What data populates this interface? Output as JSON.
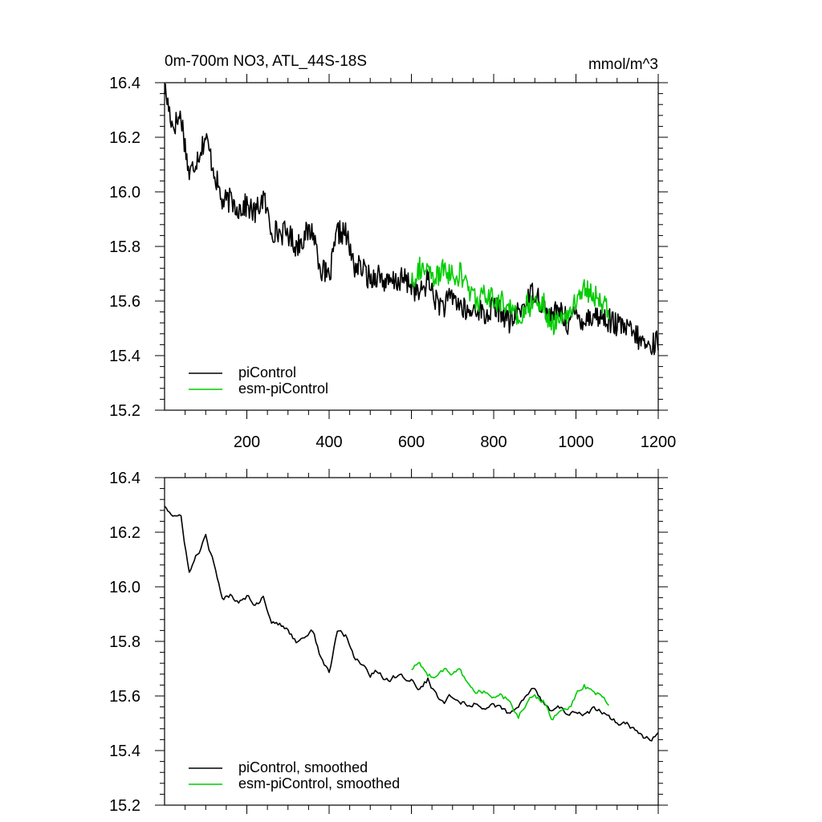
{
  "chart_data": [
    {
      "type": "line",
      "title": "0m-700m NO3, ATL_44S-18S",
      "units": "mmol/m^3",
      "xlabel": "",
      "ylabel": "",
      "xlim": [
        0,
        1200
      ],
      "ylim": [
        15.2,
        16.4
      ],
      "x_ticks": [
        200,
        400,
        600,
        800,
        1000,
        1200
      ],
      "y_ticks": [
        15.2,
        15.4,
        15.6,
        15.8,
        16.0,
        16.2,
        16.4
      ],
      "x_tick_labels": [
        "200",
        "400",
        "600",
        "800",
        "1000",
        "1200"
      ],
      "y_tick_labels": [
        "15.2",
        "15.4",
        "15.6",
        "15.8",
        "16.0",
        "16.2",
        "16.4"
      ],
      "legend_position": "bottom-left",
      "series": [
        {
          "name": "piControl",
          "color": "#000000",
          "x": [
            0,
            20,
            40,
            60,
            80,
            100,
            120,
            140,
            160,
            180,
            200,
            220,
            240,
            260,
            280,
            300,
            320,
            340,
            360,
            380,
            400,
            420,
            440,
            460,
            480,
            500,
            520,
            540,
            560,
            580,
            600,
            620,
            640,
            660,
            680,
            700,
            720,
            740,
            760,
            780,
            800,
            820,
            840,
            860,
            880,
            900,
            920,
            940,
            960,
            980,
            1000,
            1020,
            1040,
            1060,
            1080,
            1100,
            1120,
            1140,
            1160,
            1180,
            1200
          ],
          "values": [
            16.38,
            16.24,
            16.28,
            16.06,
            16.13,
            16.2,
            16.08,
            15.96,
            15.97,
            15.94,
            15.95,
            15.92,
            15.98,
            15.86,
            15.85,
            15.85,
            15.8,
            15.84,
            15.86,
            15.72,
            15.68,
            15.85,
            15.85,
            15.73,
            15.72,
            15.68,
            15.7,
            15.66,
            15.67,
            15.68,
            15.66,
            15.62,
            15.68,
            15.6,
            15.58,
            15.62,
            15.58,
            15.55,
            15.58,
            15.54,
            15.58,
            15.56,
            15.52,
            15.56,
            15.6,
            15.64,
            15.58,
            15.54,
            15.57,
            15.52,
            15.55,
            15.53,
            15.55,
            15.54,
            15.53,
            15.51,
            15.5,
            15.48,
            15.45,
            15.43,
            15.46
          ]
        },
        {
          "name": "esm-piControl",
          "color": "#00cc00",
          "x": [
            600,
            620,
            640,
            660,
            680,
            700,
            720,
            740,
            760,
            780,
            800,
            820,
            840,
            860,
            880,
            900,
            920,
            940,
            960,
            980,
            1000,
            1020,
            1040,
            1060,
            1080
          ],
          "values": [
            15.68,
            15.72,
            15.7,
            15.68,
            15.72,
            15.69,
            15.7,
            15.64,
            15.6,
            15.62,
            15.6,
            15.6,
            15.58,
            15.52,
            15.58,
            15.6,
            15.6,
            15.5,
            15.56,
            15.54,
            15.6,
            15.66,
            15.62,
            15.6,
            15.57
          ]
        }
      ]
    },
    {
      "type": "line",
      "title": "",
      "xlabel": "",
      "ylabel": "",
      "xlim": [
        0,
        1200
      ],
      "ylim": [
        15.2,
        16.4
      ],
      "y_ticks": [
        15.2,
        15.4,
        15.6,
        15.8,
        16.0,
        16.2,
        16.4
      ],
      "y_tick_labels": [
        "15.2",
        "15.4",
        "15.6",
        "15.8",
        "16.0",
        "16.2",
        "16.4"
      ],
      "legend_position": "bottom-left",
      "series": [
        {
          "name": "piControl, smoothed",
          "color": "#000000",
          "x": [
            0,
            20,
            40,
            60,
            80,
            100,
            120,
            140,
            160,
            180,
            200,
            220,
            240,
            260,
            280,
            300,
            320,
            340,
            360,
            380,
            400,
            420,
            440,
            460,
            480,
            500,
            520,
            540,
            560,
            580,
            600,
            620,
            640,
            660,
            680,
            700,
            720,
            740,
            760,
            780,
            800,
            820,
            840,
            860,
            880,
            900,
            920,
            940,
            960,
            980,
            1000,
            1020,
            1040,
            1060,
            1080,
            1100,
            1120,
            1140,
            1160,
            1180,
            1200
          ],
          "values": [
            16.3,
            16.26,
            16.25,
            16.05,
            16.12,
            16.18,
            16.08,
            15.95,
            15.97,
            15.95,
            15.97,
            15.94,
            15.96,
            15.88,
            15.86,
            15.84,
            15.8,
            15.82,
            15.84,
            15.74,
            15.68,
            15.84,
            15.82,
            15.74,
            15.72,
            15.68,
            15.69,
            15.66,
            15.67,
            15.67,
            15.66,
            15.62,
            15.66,
            15.6,
            15.58,
            15.6,
            15.58,
            15.56,
            15.58,
            15.55,
            15.57,
            15.55,
            15.53,
            15.56,
            15.6,
            15.63,
            15.58,
            15.55,
            15.56,
            15.53,
            15.54,
            15.53,
            15.55,
            15.54,
            15.53,
            15.5,
            15.5,
            15.48,
            15.45,
            15.44,
            15.46
          ]
        },
        {
          "name": "esm-piControl, smoothed",
          "color": "#00cc00",
          "x": [
            600,
            620,
            640,
            660,
            680,
            700,
            720,
            740,
            760,
            780,
            800,
            820,
            840,
            860,
            880,
            900,
            920,
            940,
            960,
            980,
            1000,
            1020,
            1040,
            1060,
            1080
          ],
          "values": [
            15.7,
            15.72,
            15.68,
            15.67,
            15.7,
            15.68,
            15.69,
            15.64,
            15.61,
            15.62,
            15.59,
            15.6,
            15.58,
            15.52,
            15.58,
            15.6,
            15.58,
            15.51,
            15.55,
            15.54,
            15.6,
            15.64,
            15.61,
            15.6,
            15.57
          ]
        }
      ]
    }
  ]
}
